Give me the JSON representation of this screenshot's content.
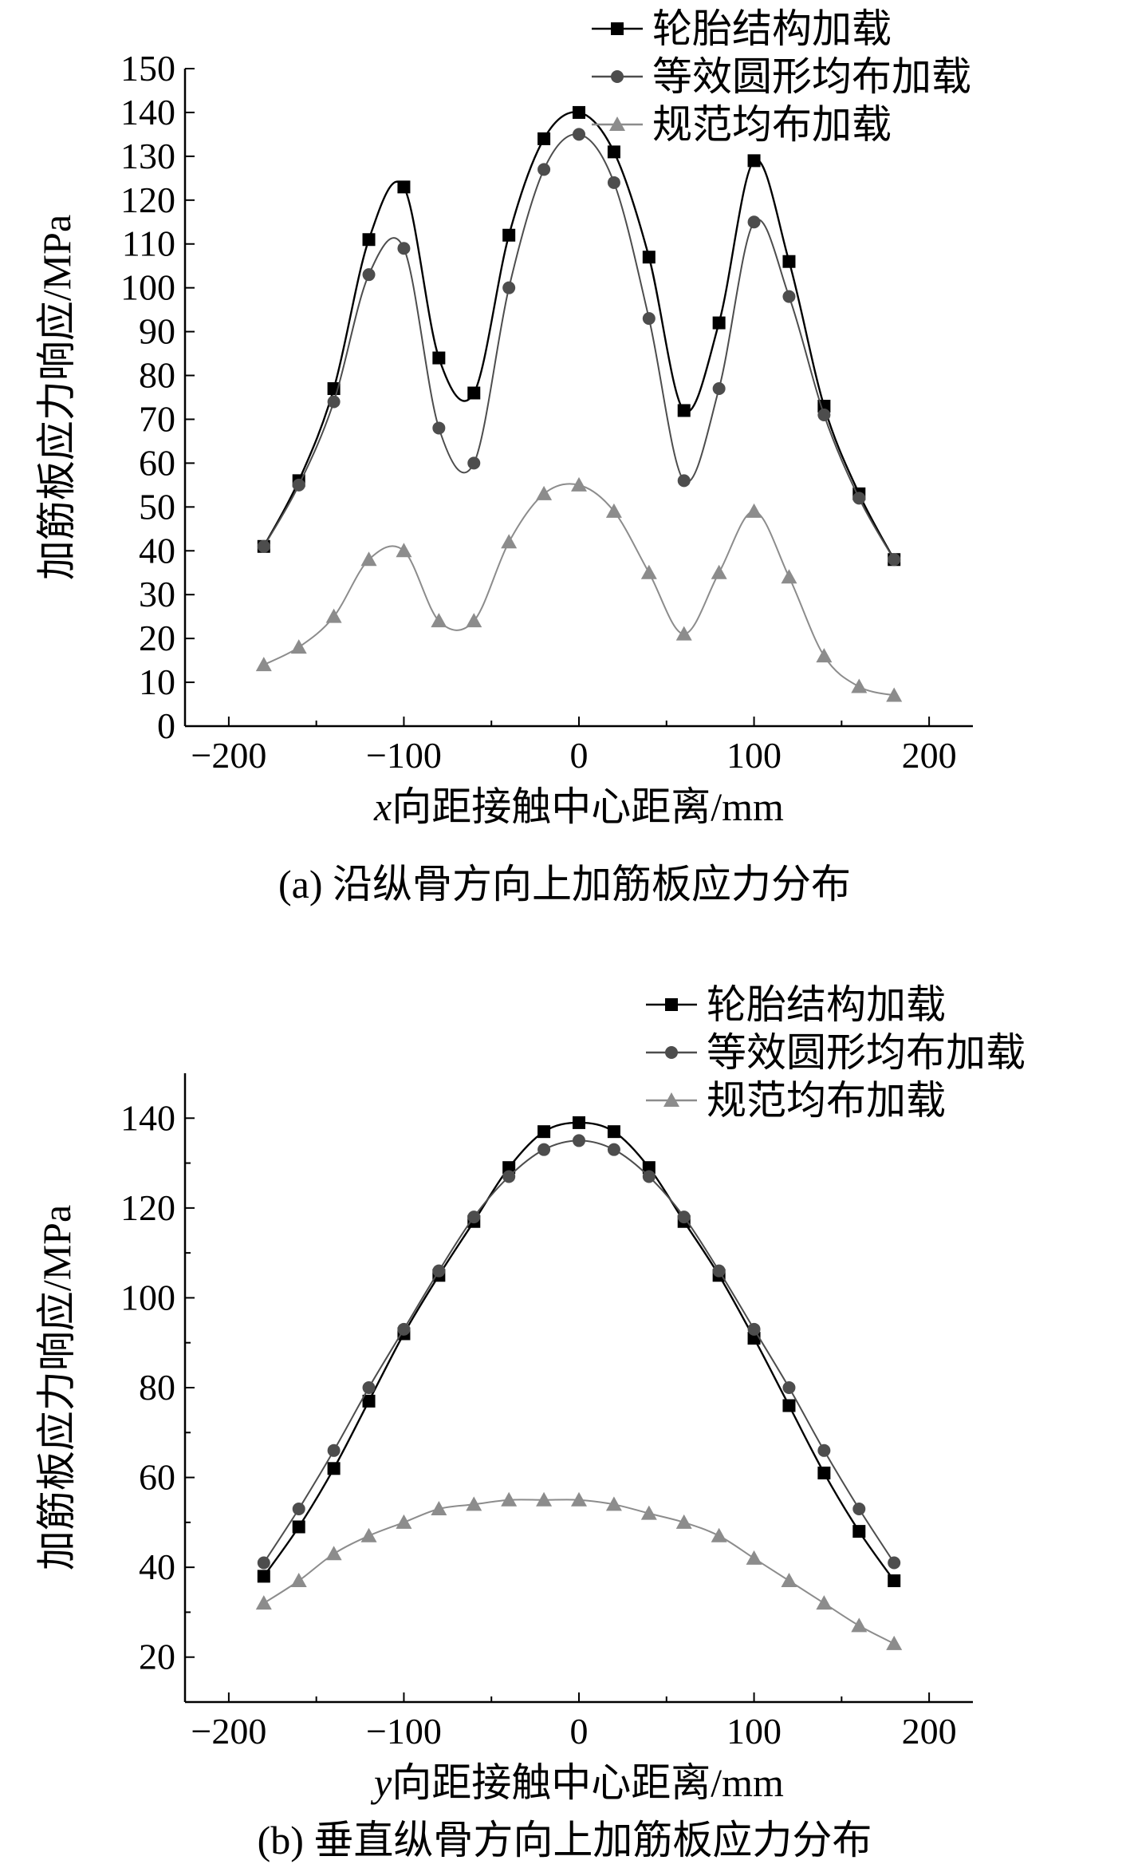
{
  "chart_data": [
    {
      "type": "line",
      "caption": "(a) 沿纵骨方向上加筋板应力分布",
      "xlabel_var": "x",
      "xlabel_rest": "向距接触中心距离/mm",
      "ylabel": "加筋板应力响应/MPa",
      "xlim": [
        -225,
        225
      ],
      "ylim": [
        0,
        150
      ],
      "xticks": [
        -200,
        -100,
        0,
        100,
        200
      ],
      "yticks": [
        0,
        10,
        20,
        30,
        40,
        50,
        60,
        70,
        80,
        90,
        100,
        110,
        120,
        130,
        140,
        150
      ],
      "xtick_labels": [
        "−200",
        "−100",
        "0",
        "100",
        "200"
      ],
      "ytick_labels": [
        "0",
        "10",
        "20",
        "30",
        "40",
        "50",
        "60",
        "70",
        "80",
        "90",
        "100",
        "110",
        "120",
        "130",
        "140",
        "150"
      ],
      "x": [
        -180,
        -160,
        -140,
        -120,
        -100,
        -80,
        -60,
        -40,
        -20,
        0,
        20,
        40,
        60,
        80,
        100,
        120,
        140,
        160,
        180
      ],
      "series": [
        {
          "name": "轮胎结构加载",
          "marker": "square",
          "color": "#000000",
          "values": [
            41,
            56,
            77,
            111,
            123,
            84,
            76,
            112,
            134,
            140,
            131,
            107,
            72,
            92,
            129,
            106,
            73,
            53,
            38
          ]
        },
        {
          "name": "等效圆形均布加载",
          "marker": "circle",
          "color": "#4d4d4d",
          "values": [
            41,
            55,
            74,
            103,
            109,
            68,
            60,
            100,
            127,
            135,
            124,
            93,
            56,
            77,
            115,
            98,
            71,
            52,
            38
          ]
        },
        {
          "name": "规范均布加载",
          "marker": "triangle",
          "color": "#8c8c8c",
          "values": [
            14,
            18,
            25,
            38,
            40,
            24,
            24,
            42,
            53,
            55,
            49,
            35,
            21,
            35,
            49,
            34,
            16,
            9,
            7
          ]
        }
      ]
    },
    {
      "type": "line",
      "caption": "(b) 垂直纵骨方向上加筋板应力分布",
      "xlabel_var": "y",
      "xlabel_rest": "向距接触中心距离/mm",
      "ylabel": "加筋板应力响应/MPa",
      "xlim": [
        -225,
        225
      ],
      "ylim": [
        10,
        150
      ],
      "xticks": [
        -200,
        -100,
        0,
        100,
        200
      ],
      "yticks": [
        20,
        40,
        60,
        80,
        100,
        120,
        140
      ],
      "xtick_labels": [
        "−200",
        "−100",
        "0",
        "100",
        "200"
      ],
      "ytick_labels": [
        "20",
        "40",
        "60",
        "80",
        "100",
        "120",
        "140"
      ],
      "x": [
        -180,
        -160,
        -140,
        -120,
        -100,
        -80,
        -60,
        -40,
        -20,
        0,
        20,
        40,
        60,
        80,
        100,
        120,
        140,
        160,
        180
      ],
      "series": [
        {
          "name": "轮胎结构加载",
          "marker": "square",
          "color": "#000000",
          "values": [
            38,
            49,
            62,
            77,
            92,
            105,
            117,
            129,
            137,
            139,
            137,
            129,
            117,
            105,
            91,
            76,
            61,
            48,
            37
          ]
        },
        {
          "name": "等效圆形均布加载",
          "marker": "circle",
          "color": "#4d4d4d",
          "values": [
            41,
            53,
            66,
            80,
            93,
            106,
            118,
            127,
            133,
            135,
            133,
            127,
            118,
            106,
            93,
            80,
            66,
            53,
            41
          ]
        },
        {
          "name": "规范均布加载",
          "marker": "triangle",
          "color": "#8c8c8c",
          "values": [
            32,
            37,
            43,
            47,
            50,
            53,
            54,
            55,
            55,
            55,
            54,
            52,
            50,
            47,
            42,
            37,
            32,
            27,
            23
          ]
        }
      ]
    }
  ]
}
